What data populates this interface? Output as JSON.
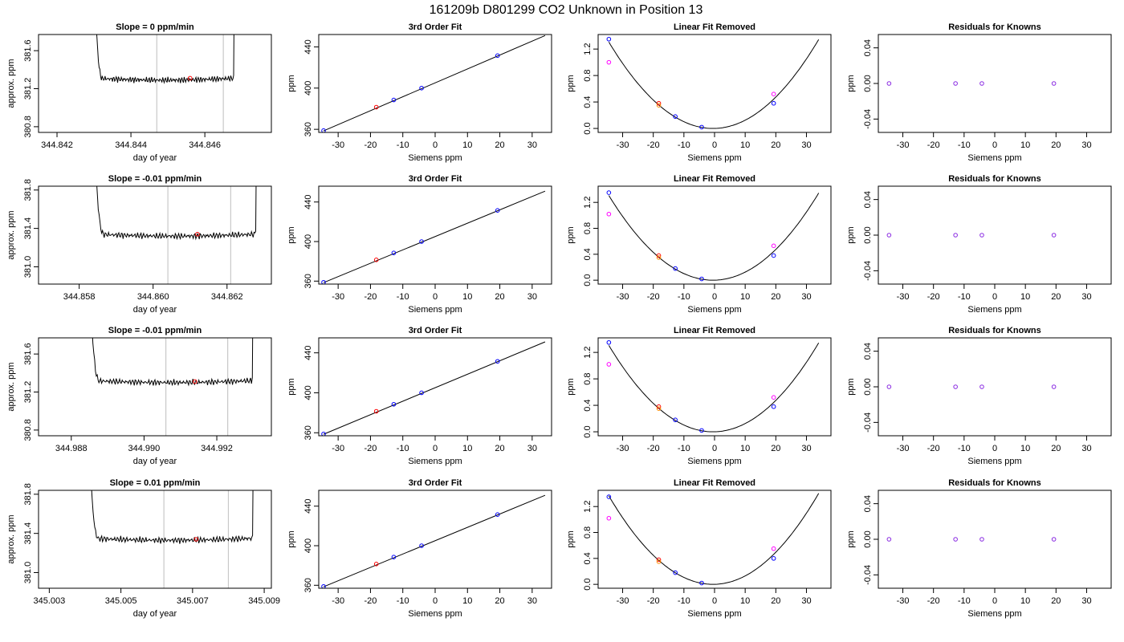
{
  "suptitle": "161209b     D801299   CO2 Unknown in Position  13",
  "colors": {
    "blue": "#0000ff",
    "red": "#ff0000",
    "orange": "#ff8c00",
    "magenta": "#ff00ff",
    "purple": "#8a2be2",
    "vline": "#c8c8c8"
  },
  "chart_data": [
    {
      "type": "line",
      "row": 0,
      "col": 0,
      "title": "Slope =  0  ppm/min",
      "xlabel": "day of year",
      "ylabel": "approx. ppm",
      "xlim": [
        344.8415,
        344.8478
      ],
      "ylim": [
        380.74,
        381.77
      ],
      "xticks": [
        344.842,
        344.844,
        344.846
      ],
      "xtick_labels": [
        "344.842",
        "344.844",
        "344.846"
      ],
      "yticks": [
        380.8,
        381.2,
        381.6
      ],
      "ytick_labels": [
        "380.8",
        "381.2",
        "381.6"
      ],
      "trace": {
        "x_start": 344.843,
        "x_end": 344.8468,
        "base": 381.31,
        "spike_top": 382.5
      },
      "vlines": [
        344.8447,
        344.8465
      ],
      "marker": {
        "x": 344.8456,
        "y": 381.31
      }
    },
    {
      "type": "line",
      "row": 0,
      "col": 1,
      "title": "3rd Order Fit",
      "xlabel": "Siemens ppm",
      "ylabel": "ppm",
      "xlim": [
        -36,
        36
      ],
      "ylim": [
        357,
        452
      ],
      "xticks": [
        -30,
        -20,
        -10,
        0,
        10,
        20,
        30
      ],
      "xtick_labels": [
        "-30",
        "-20",
        "-10",
        "0",
        "10",
        "20",
        "30"
      ],
      "yticks": [
        360,
        400,
        440
      ],
      "ytick_labels": [
        "360",
        "400",
        "440"
      ],
      "line": {
        "x": [
          -34.5,
          34
        ],
        "y": [
          358.5,
          451
        ]
      },
      "points": [
        {
          "x": -34.5,
          "y": 358.8,
          "c": "blue"
        },
        {
          "x": -18.2,
          "y": 381.5,
          "c": "red"
        },
        {
          "x": -12.8,
          "y": 388.5,
          "c": "blue"
        },
        {
          "x": -4.2,
          "y": 400,
          "c": "blue"
        },
        {
          "x": 19.3,
          "y": 431.5,
          "c": "blue"
        }
      ]
    },
    {
      "type": "line",
      "row": 0,
      "col": 2,
      "title": "Linear Fit Removed",
      "xlabel": "Siemens ppm",
      "ylabel": "ppm",
      "xlim": [
        -38,
        38
      ],
      "ylim": [
        -0.06,
        1.42
      ],
      "xticks": [
        -30,
        -20,
        -10,
        0,
        10,
        20,
        30
      ],
      "xtick_labels": [
        "-30",
        "-20",
        "-10",
        "0",
        "10",
        "20",
        "30"
      ],
      "yticks": [
        0.0,
        0.4,
        0.8,
        1.2
      ],
      "ytick_labels": [
        "0.0",
        "0.4",
        "0.8",
        "1.2"
      ],
      "curve": {
        "x_from": -34.5,
        "x_to": 34,
        "a": 0.00113,
        "xmin": -0.5
      },
      "points": [
        {
          "x": -34.5,
          "y": 1.35,
          "c": "blue"
        },
        {
          "x": -34.5,
          "y": 1.0,
          "c": "magenta"
        },
        {
          "x": -18.2,
          "y": 0.38,
          "c": "red"
        },
        {
          "x": -18.2,
          "y": 0.35,
          "c": "orange"
        },
        {
          "x": -12.8,
          "y": 0.18,
          "c": "blue"
        },
        {
          "x": -4.2,
          "y": 0.02,
          "c": "blue"
        },
        {
          "x": 19.3,
          "y": 0.38,
          "c": "blue"
        },
        {
          "x": 19.3,
          "y": 0.52,
          "c": "magenta"
        }
      ]
    },
    {
      "type": "scatter",
      "row": 0,
      "col": 3,
      "title": "Residuals for Knowns",
      "xlabel": "Siemens ppm",
      "ylabel": "ppm",
      "xlim": [
        -38,
        38
      ],
      "ylim": [
        -0.055,
        0.055
      ],
      "xticks": [
        -30,
        -20,
        -10,
        0,
        10,
        20,
        30
      ],
      "xtick_labels": [
        "-30",
        "-20",
        "-10",
        "0",
        "10",
        "20",
        "30"
      ],
      "yticks": [
        -0.04,
        0.0,
        0.04
      ],
      "ytick_labels": [
        "-0.04",
        "0.00",
        "0.04"
      ],
      "points": [
        {
          "x": -34.5,
          "y": 0,
          "c": "purple"
        },
        {
          "x": -12.8,
          "y": 0,
          "c": "purple"
        },
        {
          "x": -4.2,
          "y": 0,
          "c": "purple"
        },
        {
          "x": 19.3,
          "y": 0,
          "c": "purple"
        }
      ]
    },
    {
      "type": "line",
      "row": 1,
      "col": 0,
      "title": "Slope =  -0.01  ppm/min",
      "xlabel": "day of year",
      "ylabel": "approx. ppm",
      "xlim": [
        344.8569,
        344.8632
      ],
      "ylim": [
        380.82,
        381.84
      ],
      "xticks": [
        344.858,
        344.86,
        344.862
      ],
      "xtick_labels": [
        "344.858",
        "344.860",
        "344.862"
      ],
      "yticks": [
        381.0,
        381.4,
        381.8
      ],
      "ytick_labels": [
        "381.0",
        "381.4",
        "381.8"
      ],
      "trace": {
        "x_start": 344.8584,
        "x_end": 344.8628,
        "base": 381.34,
        "spike_top": 382.5
      },
      "vlines": [
        344.8604,
        344.8621
      ],
      "marker": {
        "x": 344.8612,
        "y": 381.34
      }
    },
    {
      "type": "line",
      "row": 1,
      "col": 1,
      "title": "3rd Order Fit",
      "xlabel": "Siemens ppm",
      "ylabel": "ppm",
      "xlim": [
        -36,
        36
      ],
      "ylim": [
        357,
        456
      ],
      "xticks": [
        -30,
        -20,
        -10,
        0,
        10,
        20,
        30
      ],
      "xtick_labels": [
        "-30",
        "-20",
        "-10",
        "0",
        "10",
        "20",
        "30"
      ],
      "yticks": [
        360,
        400,
        440
      ],
      "ytick_labels": [
        "360",
        "400",
        "440"
      ],
      "line": {
        "x": [
          -34.5,
          34
        ],
        "y": [
          358.5,
          451
        ]
      },
      "points": [
        {
          "x": -34.5,
          "y": 358.8,
          "c": "blue"
        },
        {
          "x": -18.2,
          "y": 381.5,
          "c": "red"
        },
        {
          "x": -12.8,
          "y": 388.5,
          "c": "blue"
        },
        {
          "x": -4.2,
          "y": 400,
          "c": "blue"
        },
        {
          "x": 19.3,
          "y": 431.5,
          "c": "blue"
        }
      ]
    },
    {
      "type": "line",
      "row": 1,
      "col": 2,
      "title": "Linear Fit Removed",
      "xlabel": "Siemens ppm",
      "ylabel": "ppm",
      "xlim": [
        -38,
        38
      ],
      "ylim": [
        -0.06,
        1.45
      ],
      "xticks": [
        -30,
        -20,
        -10,
        0,
        10,
        20,
        30
      ],
      "xtick_labels": [
        "-30",
        "-20",
        "-10",
        "0",
        "10",
        "20",
        "30"
      ],
      "yticks": [
        0.0,
        0.4,
        0.8,
        1.2
      ],
      "ytick_labels": [
        "0.0",
        "0.4",
        "0.8",
        "1.2"
      ],
      "curve": {
        "x_from": -34.5,
        "x_to": 34,
        "a": 0.00113,
        "xmin": -0.5
      },
      "points": [
        {
          "x": -34.5,
          "y": 1.35,
          "c": "blue"
        },
        {
          "x": -34.5,
          "y": 1.02,
          "c": "magenta"
        },
        {
          "x": -18.2,
          "y": 0.38,
          "c": "red"
        },
        {
          "x": -18.2,
          "y": 0.35,
          "c": "orange"
        },
        {
          "x": -12.8,
          "y": 0.18,
          "c": "blue"
        },
        {
          "x": -4.2,
          "y": 0.02,
          "c": "blue"
        },
        {
          "x": 19.3,
          "y": 0.38,
          "c": "blue"
        },
        {
          "x": 19.3,
          "y": 0.53,
          "c": "magenta"
        }
      ]
    },
    {
      "type": "scatter",
      "row": 1,
      "col": 3,
      "title": "Residuals for Knowns",
      "xlabel": "Siemens ppm",
      "ylabel": "ppm",
      "xlim": [
        -38,
        38
      ],
      "ylim": [
        -0.055,
        0.055
      ],
      "xticks": [
        -30,
        -20,
        -10,
        0,
        10,
        20,
        30
      ],
      "xtick_labels": [
        "-30",
        "-20",
        "-10",
        "0",
        "10",
        "20",
        "30"
      ],
      "yticks": [
        -0.04,
        0.0,
        0.04
      ],
      "ytick_labels": [
        "-0.04",
        "0.00",
        "0.04"
      ],
      "points": [
        {
          "x": -34.5,
          "y": 0,
          "c": "purple"
        },
        {
          "x": -12.8,
          "y": 0,
          "c": "purple"
        },
        {
          "x": -4.2,
          "y": 0,
          "c": "purple"
        },
        {
          "x": 19.3,
          "y": 0,
          "c": "purple"
        }
      ]
    },
    {
      "type": "line",
      "row": 2,
      "col": 0,
      "title": "Slope =  -0.01  ppm/min",
      "xlabel": "day of year",
      "ylabel": "approx. ppm",
      "xlim": [
        344.9871,
        344.9935
      ],
      "ylim": [
        380.74,
        381.77
      ],
      "xticks": [
        344.988,
        344.99,
        344.992
      ],
      "xtick_labels": [
        "344.988",
        "344.990",
        "344.992"
      ],
      "yticks": [
        380.8,
        381.2,
        381.6
      ],
      "ytick_labels": [
        "380.8",
        "381.2",
        "381.6"
      ],
      "trace": {
        "x_start": 344.9885,
        "x_end": 344.993,
        "base": 381.32,
        "spike_top": 382.5
      },
      "vlines": [
        344.9906,
        344.9923
      ],
      "marker": {
        "x": 344.9914,
        "y": 381.31
      }
    },
    {
      "type": "line",
      "row": 2,
      "col": 1,
      "title": "3rd Order Fit",
      "xlabel": "Siemens ppm",
      "ylabel": "ppm",
      "xlim": [
        -36,
        36
      ],
      "ylim": [
        357,
        455
      ],
      "xticks": [
        -30,
        -20,
        -10,
        0,
        10,
        20,
        30
      ],
      "xtick_labels": [
        "-30",
        "-20",
        "-10",
        "0",
        "10",
        "20",
        "30"
      ],
      "yticks": [
        360,
        400,
        440
      ],
      "ytick_labels": [
        "360",
        "400",
        "440"
      ],
      "line": {
        "x": [
          -34.5,
          34
        ],
        "y": [
          358.5,
          451
        ]
      },
      "points": [
        {
          "x": -34.5,
          "y": 358.8,
          "c": "blue"
        },
        {
          "x": -18.2,
          "y": 381.5,
          "c": "red"
        },
        {
          "x": -12.8,
          "y": 388.5,
          "c": "blue"
        },
        {
          "x": -4.2,
          "y": 400,
          "c": "blue"
        },
        {
          "x": 19.3,
          "y": 431.5,
          "c": "blue"
        }
      ]
    },
    {
      "type": "line",
      "row": 2,
      "col": 2,
      "title": "Linear Fit Removed",
      "xlabel": "Siemens ppm",
      "ylabel": "ppm",
      "xlim": [
        -38,
        38
      ],
      "ylim": [
        -0.06,
        1.42
      ],
      "xticks": [
        -30,
        -20,
        -10,
        0,
        10,
        20,
        30
      ],
      "xtick_labels": [
        "-30",
        "-20",
        "-10",
        "0",
        "10",
        "20",
        "30"
      ],
      "yticks": [
        0.0,
        0.4,
        0.8,
        1.2
      ],
      "ytick_labels": [
        "0.0",
        "0.4",
        "0.8",
        "1.2"
      ],
      "curve": {
        "x_from": -34.5,
        "x_to": 34,
        "a": 0.00113,
        "xmin": -0.5
      },
      "points": [
        {
          "x": -34.5,
          "y": 1.35,
          "c": "blue"
        },
        {
          "x": -34.5,
          "y": 1.02,
          "c": "magenta"
        },
        {
          "x": -18.2,
          "y": 0.38,
          "c": "red"
        },
        {
          "x": -18.2,
          "y": 0.35,
          "c": "orange"
        },
        {
          "x": -12.8,
          "y": 0.18,
          "c": "blue"
        },
        {
          "x": -4.2,
          "y": 0.02,
          "c": "blue"
        },
        {
          "x": 19.3,
          "y": 0.38,
          "c": "blue"
        },
        {
          "x": 19.3,
          "y": 0.52,
          "c": "magenta"
        }
      ]
    },
    {
      "type": "scatter",
      "row": 2,
      "col": 3,
      "title": "Residuals for Knowns",
      "xlabel": "Siemens ppm",
      "ylabel": "ppm",
      "xlim": [
        -38,
        38
      ],
      "ylim": [
        -0.055,
        0.055
      ],
      "xticks": [
        -30,
        -20,
        -10,
        0,
        10,
        20,
        30
      ],
      "xtick_labels": [
        "-30",
        "-20",
        "-10",
        "0",
        "10",
        "20",
        "30"
      ],
      "yticks": [
        -0.04,
        0.0,
        0.04
      ],
      "ytick_labels": [
        "-0.04",
        "0.00",
        "0.04"
      ],
      "points": [
        {
          "x": -34.5,
          "y": 0,
          "c": "purple"
        },
        {
          "x": -12.8,
          "y": 0,
          "c": "purple"
        },
        {
          "x": -4.2,
          "y": 0,
          "c": "purple"
        },
        {
          "x": 19.3,
          "y": 0,
          "c": "purple"
        }
      ]
    },
    {
      "type": "line",
      "row": 3,
      "col": 0,
      "title": "Slope =  0.01  ppm/min",
      "xlabel": "day of year",
      "ylabel": "approx. ppm",
      "xlim": [
        345.0027,
        345.0092
      ],
      "ylim": [
        380.84,
        381.84
      ],
      "xticks": [
        345.003,
        345.005,
        345.007,
        345.009
      ],
      "xtick_labels": [
        "345.003",
        "345.005",
        "345.007",
        "345.009"
      ],
      "yticks": [
        381.0,
        381.4,
        381.8
      ],
      "ytick_labels": [
        "381.0",
        "381.4",
        "381.8"
      ],
      "trace": {
        "x_start": 345.0041,
        "x_end": 345.0087,
        "base": 381.35,
        "spike_top": 382.5
      },
      "vlines": [
        345.0062,
        345.008
      ],
      "marker": {
        "x": 345.0071,
        "y": 381.34
      }
    },
    {
      "type": "line",
      "row": 3,
      "col": 1,
      "title": "3rd Order Fit",
      "xlabel": "Siemens ppm",
      "ylabel": "ppm",
      "xlim": [
        -36,
        36
      ],
      "ylim": [
        357,
        456
      ],
      "xticks": [
        -30,
        -20,
        -10,
        0,
        10,
        20,
        30
      ],
      "xtick_labels": [
        "-30",
        "-20",
        "-10",
        "0",
        "10",
        "20",
        "30"
      ],
      "yticks": [
        360,
        400,
        440
      ],
      "ytick_labels": [
        "360",
        "400",
        "440"
      ],
      "line": {
        "x": [
          -34.5,
          34
        ],
        "y": [
          358.5,
          451
        ]
      },
      "points": [
        {
          "x": -34.5,
          "y": 358.8,
          "c": "blue"
        },
        {
          "x": -18.2,
          "y": 381.5,
          "c": "red"
        },
        {
          "x": -12.8,
          "y": 388.5,
          "c": "blue"
        },
        {
          "x": -4.2,
          "y": 400,
          "c": "blue"
        },
        {
          "x": 19.3,
          "y": 431.5,
          "c": "blue"
        }
      ]
    },
    {
      "type": "line",
      "row": 3,
      "col": 2,
      "title": "Linear Fit Removed",
      "xlabel": "Siemens ppm",
      "ylabel": "ppm",
      "xlim": [
        -38,
        38
      ],
      "ylim": [
        -0.06,
        1.45
      ],
      "xticks": [
        -30,
        -20,
        -10,
        0,
        10,
        20,
        30
      ],
      "xtick_labels": [
        "-30",
        "-20",
        "-10",
        "0",
        "10",
        "20",
        "30"
      ],
      "yticks": [
        0.0,
        0.4,
        0.8,
        1.2
      ],
      "ytick_labels": [
        "0.0",
        "0.4",
        "0.8",
        "1.2"
      ],
      "curve": {
        "x_from": -34.5,
        "x_to": 34,
        "a": 0.00118,
        "xmin": -0.5
      },
      "points": [
        {
          "x": -34.5,
          "y": 1.35,
          "c": "blue"
        },
        {
          "x": -34.5,
          "y": 1.02,
          "c": "magenta"
        },
        {
          "x": -18.2,
          "y": 0.38,
          "c": "red"
        },
        {
          "x": -18.2,
          "y": 0.35,
          "c": "orange"
        },
        {
          "x": -12.8,
          "y": 0.18,
          "c": "blue"
        },
        {
          "x": -4.2,
          "y": 0.02,
          "c": "blue"
        },
        {
          "x": 19.3,
          "y": 0.4,
          "c": "blue"
        },
        {
          "x": 19.3,
          "y": 0.55,
          "c": "magenta"
        }
      ]
    },
    {
      "type": "scatter",
      "row": 3,
      "col": 3,
      "title": "Residuals for Knowns",
      "xlabel": "Siemens ppm",
      "ylabel": "ppm",
      "xlim": [
        -38,
        38
      ],
      "ylim": [
        -0.055,
        0.055
      ],
      "xticks": [
        -30,
        -20,
        -10,
        0,
        10,
        20,
        30
      ],
      "xtick_labels": [
        "-30",
        "-20",
        "-10",
        "0",
        "10",
        "20",
        "30"
      ],
      "yticks": [
        -0.04,
        0.0,
        0.04
      ],
      "ytick_labels": [
        "-0.04",
        "0.00",
        "0.04"
      ],
      "points": [
        {
          "x": -34.5,
          "y": 0,
          "c": "purple"
        },
        {
          "x": -12.8,
          "y": 0,
          "c": "purple"
        },
        {
          "x": -4.2,
          "y": 0,
          "c": "purple"
        },
        {
          "x": 19.3,
          "y": 0,
          "c": "purple"
        }
      ]
    }
  ]
}
